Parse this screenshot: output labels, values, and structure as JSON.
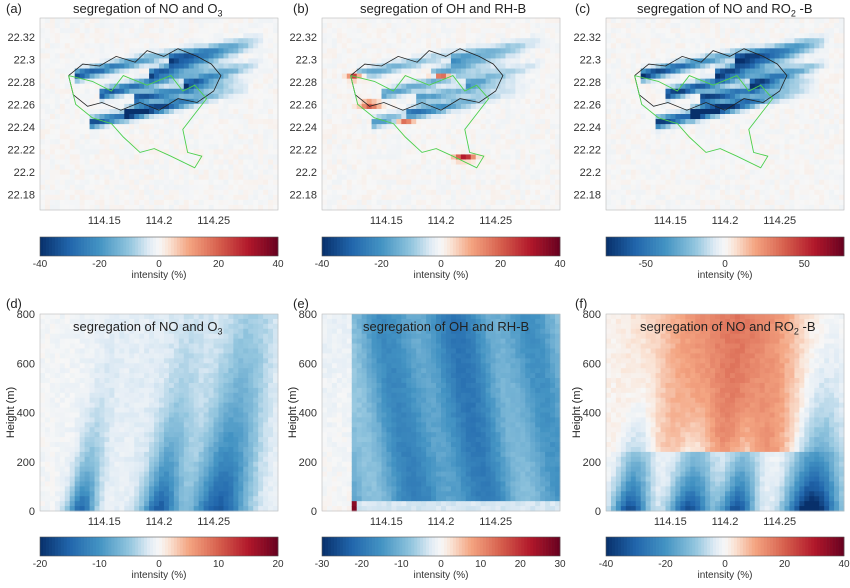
{
  "chart_data": [
    {
      "id": "a",
      "label": "(a)",
      "type": "heatmap",
      "title_parts": [
        "segregation of NO and O",
        "3",
        ""
      ],
      "view": "map",
      "x_ticks": [
        "114.15",
        "114.2",
        "114.25"
      ],
      "y_ticks": [
        "22.32",
        "22.3",
        "22.28",
        "22.26",
        "22.24",
        "22.22",
        "22.2",
        "22.18"
      ],
      "colorbar": {
        "ticks": [
          "-40",
          "-20",
          "0",
          "20",
          "40"
        ],
        "label": "intensity (%)",
        "range": [
          -40,
          40
        ]
      }
    },
    {
      "id": "b",
      "label": "(b)",
      "type": "heatmap",
      "title_parts": [
        "segregation of OH and RH-B",
        "",
        ""
      ],
      "view": "map",
      "x_ticks": [
        "114.15",
        "114.2",
        "114.25"
      ],
      "y_ticks": [
        "22.32",
        "22.3",
        "22.28",
        "22.26",
        "22.24",
        "22.22",
        "22.2",
        "22.18"
      ],
      "colorbar": {
        "ticks": [
          "-40",
          "-20",
          "0",
          "20",
          "40"
        ],
        "label": "intensity (%)",
        "range": [
          -40,
          40
        ]
      }
    },
    {
      "id": "c",
      "label": "(c)",
      "type": "heatmap",
      "title_parts": [
        "segregation of NO and RO",
        "2",
        " -B"
      ],
      "view": "map",
      "x_ticks": [
        "114.15",
        "114.2",
        "114.25"
      ],
      "y_ticks": [
        "22.32",
        "22.3",
        "22.28",
        "22.26",
        "22.24",
        "22.22",
        "22.2",
        "22.18"
      ],
      "colorbar": {
        "ticks": [
          "-50",
          "0",
          "50"
        ],
        "label": "intensity (%)",
        "range": [
          -75,
          75
        ]
      }
    },
    {
      "id": "d",
      "label": "(d)",
      "type": "heatmap",
      "title_parts": [
        "segregation of NO and O",
        "3",
        ""
      ],
      "view": "section",
      "x_ticks": [
        "114.15",
        "114.2",
        "114.25"
      ],
      "y_ticks": [
        "800",
        "600",
        "400",
        "200",
        "0"
      ],
      "ylabel": "Height (m)",
      "colorbar": {
        "ticks": [
          "-20",
          "-10",
          "0",
          "10",
          "20"
        ],
        "label": "intensity (%)",
        "range": [
          -20,
          20
        ]
      }
    },
    {
      "id": "e",
      "label": "(e)",
      "type": "heatmap",
      "title_parts": [
        "segregation of OH and RH-B",
        "",
        ""
      ],
      "view": "section",
      "x_ticks": [
        "114.15",
        "114.2",
        "114.25"
      ],
      "y_ticks": [
        "800",
        "600",
        "400",
        "200",
        "0"
      ],
      "ylabel": "Height (m)",
      "colorbar": {
        "ticks": [
          "-30",
          "-20",
          "-10",
          "0",
          "10",
          "20",
          "30"
        ],
        "label": "intensity (%)",
        "range": [
          -30,
          30
        ]
      }
    },
    {
      "id": "f",
      "label": "(f)",
      "type": "heatmap",
      "title_parts": [
        "segregation of NO and RO",
        "2",
        " -B"
      ],
      "view": "section",
      "x_ticks": [
        "114.15",
        "114.2",
        "114.25"
      ],
      "y_ticks": [
        "800",
        "600",
        "400",
        "200",
        "0"
      ],
      "ylabel": "Height (m)",
      "colorbar": {
        "ticks": [
          "-40",
          "-20",
          "0",
          "20",
          "40"
        ],
        "label": "intensity (%)",
        "range": [
          -40,
          40
        ]
      }
    }
  ]
}
